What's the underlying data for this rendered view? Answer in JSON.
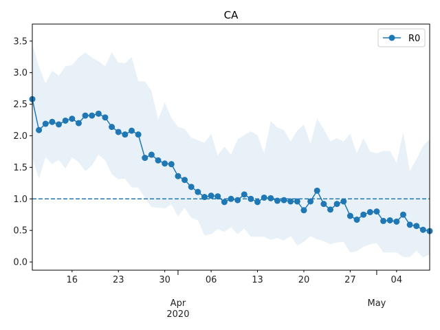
{
  "chart_data": {
    "type": "line",
    "title": "CA",
    "xlabel": "",
    "ylabel": "",
    "ylim": [
      -0.13,
      3.77
    ],
    "x_start": "2020-03-10",
    "xlim_index": [
      0,
      60
    ],
    "yticks": [
      0.0,
      0.5,
      1.0,
      1.5,
      2.0,
      2.5,
      3.0,
      3.5
    ],
    "ytick_labels": [
      "0.0",
      "0.5",
      "1.0",
      "1.5",
      "2.0",
      "2.5",
      "3.0",
      "3.5"
    ],
    "xticks_minor": [
      {
        "index": 6,
        "label": "16"
      },
      {
        "index": 13,
        "label": "23"
      },
      {
        "index": 20,
        "label": "30"
      },
      {
        "index": 27,
        "label": "06"
      },
      {
        "index": 34,
        "label": "13"
      },
      {
        "index": 41,
        "label": "20"
      },
      {
        "index": 48,
        "label": "27"
      },
      {
        "index": 55,
        "label": "04"
      }
    ],
    "xticks_major": [
      {
        "index": 22,
        "label": "Apr",
        "sublabel": "2020"
      },
      {
        "index": 52,
        "label": "May",
        "sublabel": ""
      }
    ],
    "reference_line": {
      "y": 1.0,
      "style": "dashed",
      "color": "#1f77b4"
    },
    "legend": {
      "position": "top-right",
      "entries": [
        "R0"
      ]
    },
    "series": [
      {
        "name": "R0",
        "color": "#1f77b4",
        "values": [
          2.58,
          2.09,
          2.19,
          2.22,
          2.18,
          2.24,
          2.27,
          2.2,
          2.32,
          2.32,
          2.35,
          2.29,
          2.14,
          2.06,
          2.02,
          2.08,
          2.02,
          1.65,
          1.7,
          1.61,
          1.56,
          1.55,
          1.36,
          1.3,
          1.19,
          1.11,
          1.03,
          1.05,
          1.04,
          0.95,
          1.0,
          0.98,
          1.07,
          1.0,
          0.95,
          1.02,
          1.01,
          0.97,
          0.98,
          0.96,
          0.96,
          0.82,
          0.96,
          1.13,
          0.92,
          0.83,
          0.92,
          0.96,
          0.73,
          0.67,
          0.75,
          0.79,
          0.8,
          0.65,
          0.66,
          0.64,
          0.75,
          0.59,
          0.57,
          0.51,
          0.49
        ]
      }
    ],
    "band": {
      "name": "uncertainty",
      "color": "#1f77b4",
      "opacity": 0.1,
      "upper": [
        3.45,
        3.1,
        2.83,
        3.03,
        2.95,
        3.1,
        3.12,
        3.24,
        3.32,
        3.24,
        3.18,
        3.1,
        3.32,
        3.16,
        3.15,
        3.25,
        2.86,
        2.86,
        2.71,
        2.25,
        2.53,
        2.28,
        2.14,
        2.11,
        1.97,
        1.93,
        1.89,
        2.03,
        1.69,
        1.83,
        1.7,
        1.94,
        2.01,
        2.07,
        2.01,
        1.72,
        2.23,
        2.13,
        2.09,
        1.91,
        2.08,
        2.18,
        1.87,
        2.27,
        2.11,
        1.91,
        1.96,
        1.91,
        2.03,
        1.72,
        1.96,
        1.75,
        1.72,
        1.76,
        1.76,
        1.57,
        2.06,
        1.44,
        1.63,
        1.84,
        1.95
      ],
      "lower": [
        1.65,
        1.32,
        1.66,
        1.55,
        1.62,
        1.48,
        1.66,
        1.58,
        1.44,
        1.53,
        1.7,
        1.61,
        1.39,
        1.31,
        1.32,
        1.18,
        1.18,
        1.02,
        0.87,
        0.86,
        0.85,
        0.91,
        0.72,
        0.86,
        0.7,
        0.66,
        0.42,
        0.44,
        0.52,
        0.48,
        0.55,
        0.44,
        0.53,
        0.4,
        0.4,
        0.4,
        0.35,
        0.38,
        0.34,
        0.41,
        0.26,
        0.32,
        0.41,
        0.36,
        0.33,
        0.28,
        0.31,
        0.32,
        0.15,
        0.17,
        0.24,
        0.28,
        0.3,
        0.15,
        0.15,
        0.15,
        0.08,
        0.08,
        0.18,
        0.07,
        0.12
      ]
    }
  }
}
